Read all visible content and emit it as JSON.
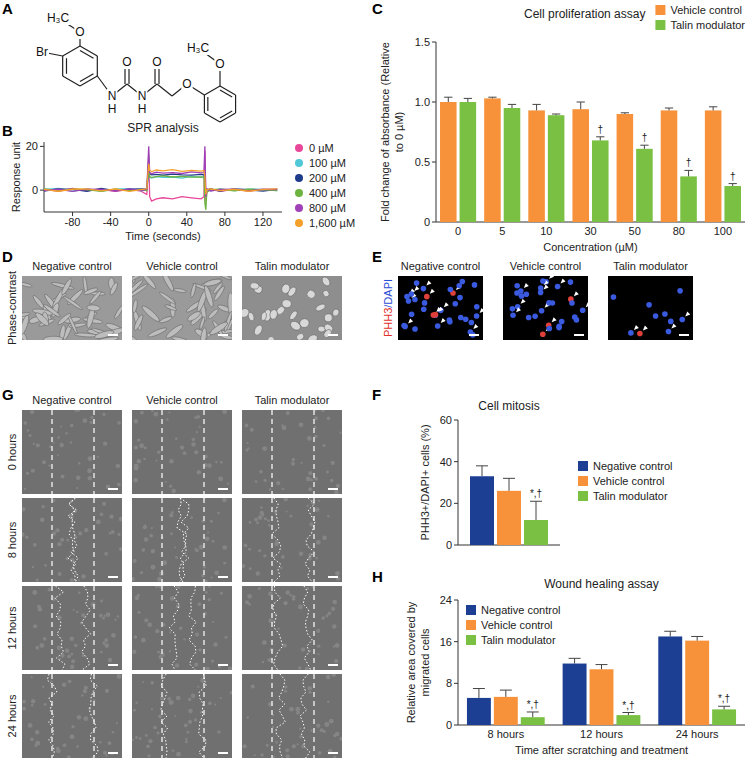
{
  "structure": {
    "panel_label": "A",
    "atoms": [
      "H₃C",
      "O",
      "Br",
      "N",
      "H",
      "O",
      "N",
      "H",
      "O",
      "O",
      "O",
      "H₃C"
    ]
  },
  "chart_data": [
    {
      "panel_label": "B",
      "type": "line",
      "title": "SPR analysis",
      "x_label": "Time (seconds)",
      "y_label": "Response unit",
      "x": [
        -110,
        -95,
        -80,
        -65,
        -50,
        -35,
        -20,
        -8,
        -2,
        0,
        1,
        3,
        8,
        15,
        25,
        35,
        45,
        55,
        58,
        59,
        60,
        61,
        65,
        75,
        90,
        105,
        120,
        135
      ],
      "xlim": [
        -110,
        140
      ],
      "ylim": [
        -10,
        22
      ],
      "xticks": [
        -80,
        -40,
        0,
        40,
        80,
        120
      ],
      "yticks": [
        0,
        20
      ],
      "legend": "right",
      "series": [
        {
          "name": "0 µM",
          "color": "#e8479a",
          "values": [
            0.5,
            -0.5,
            0.8,
            -0.3,
            0.4,
            -0.6,
            0.3,
            -0.5,
            -2,
            14,
            -3,
            -5,
            -4,
            -3.5,
            -4,
            -3,
            -3.5,
            -4,
            -3,
            18,
            -5,
            -1,
            0.5,
            -0.5,
            0.3,
            -0.4,
            0.2,
            0.5
          ]
        },
        {
          "name": "100 µM",
          "color": "#4fc8d8",
          "values": [
            0.3,
            0.8,
            -0.5,
            0.6,
            -0.4,
            0.5,
            0.7,
            -0.3,
            0.2,
            8,
            6,
            5.5,
            6.2,
            5.8,
            6,
            5.5,
            6.3,
            5.8,
            6,
            4,
            -1,
            0.5,
            -0.3,
            0.6,
            -0.2,
            0.5,
            0.3,
            -0.2
          ]
        },
        {
          "name": "200 µM",
          "color": "#1f3c8c",
          "values": [
            -0.4,
            0.6,
            0.3,
            -0.5,
            0.8,
            -0.2,
            0.4,
            0.6,
            0.5,
            10,
            7.5,
            7,
            7.2,
            6.8,
            7.3,
            7,
            6.9,
            7.2,
            7,
            5,
            -2,
            0.2,
            0.5,
            -0.4,
            0.6,
            0.2,
            -0.5,
            0.4
          ]
        },
        {
          "name": "400 µM",
          "color": "#6db33f",
          "values": [
            0.6,
            -0.3,
            0.5,
            0.2,
            -0.6,
            0.4,
            -0.2,
            0.3,
            -0.3,
            16,
            6,
            5.8,
            6.2,
            6.5,
            6,
            6.3,
            5.9,
            6.1,
            6,
            -6,
            -9,
            -1,
            0.2,
            0.4,
            -0.3,
            0.5,
            0.1,
            -0.2
          ]
        },
        {
          "name": "800 µM",
          "color": "#a040b8",
          "values": [
            -0.2,
            0.4,
            -0.6,
            0.5,
            0.3,
            -0.4,
            0.6,
            -0.2,
            0.4,
            20,
            8,
            7.5,
            8.2,
            7.8,
            8,
            7.6,
            8.3,
            7.9,
            8,
            20,
            -3,
            0.6,
            -0.4,
            0.3,
            0.5,
            -0.3,
            0.4,
            0.2
          ]
        },
        {
          "name": "1,600 µM",
          "color": "#f5a02a",
          "values": [
            0.3,
            -0.5,
            0.4,
            0.6,
            -0.3,
            0.5,
            -0.6,
            0.2,
            0.6,
            12,
            9,
            8.5,
            9.2,
            8.8,
            9.4,
            8.6,
            9,
            8.7,
            9,
            6,
            -2,
            0.3,
            0.6,
            -0.2,
            0.4,
            -0.5,
            0.3,
            0.6
          ]
        }
      ]
    },
    {
      "panel_label": "C",
      "type": "bar",
      "title": "Cell proliferation assay",
      "x_label": "Concentration (µM)",
      "y_label": "Fold change of absorbance (Relative to 0 µM)",
      "categories": [
        "0",
        "5",
        "10",
        "30",
        "50",
        "80",
        "100"
      ],
      "ylim": [
        0,
        1.5
      ],
      "yticks": [
        0,
        0.5,
        {
          "value": 1,
          "label": "1.0"
        },
        1.5
      ],
      "legend": "upper right",
      "series": [
        {
          "name": "Vehicle control",
          "color": "#f7923a",
          "values": [
            1.0,
            1.03,
            0.93,
            0.94,
            0.9,
            0.93,
            0.93
          ],
          "errors": [
            0.04,
            0.01,
            0.05,
            0.06,
            0.01,
            0.02,
            0.03
          ]
        },
        {
          "name": "Talin modulator",
          "color": "#7ac143",
          "values": [
            1.0,
            0.95,
            0.89,
            0.68,
            0.61,
            0.38,
            0.3
          ],
          "errors": [
            0.03,
            0.03,
            0.01,
            0.03,
            0.03,
            0.05,
            0.02
          ],
          "annotations": [
            null,
            null,
            null,
            "†",
            "†",
            "†",
            "†"
          ]
        }
      ]
    },
    {
      "panel_label": "F",
      "type": "bar",
      "title": "Cell mitosis",
      "y_label": "PHH3+/DAPI+ cells (%)",
      "categories": [
        null
      ],
      "ylim": [
        0,
        60
      ],
      "yticks": [
        0,
        20,
        40,
        60
      ],
      "legend": "right",
      "series": [
        {
          "name": "Negative control",
          "color": "#1c3f94",
          "values": [
            33
          ],
          "errors": [
            5
          ]
        },
        {
          "name": "Vehicle control",
          "color": "#f7923a",
          "values": [
            26
          ],
          "errors": [
            6
          ]
        },
        {
          "name": "Talin modulator",
          "color": "#7ac143",
          "values": [
            12
          ],
          "errors": [
            9
          ],
          "annotations": [
            "*,†"
          ]
        }
      ]
    },
    {
      "panel_label": "H",
      "type": "bar",
      "title": "Wound healing assay",
      "x_label": "Time after scratching and treatment",
      "y_label": "Relative area covered by migrated cells",
      "categories": [
        "8 hours",
        "12 hours",
        "24 hours"
      ],
      "ylim": [
        0,
        24
      ],
      "yticks": [
        0,
        8,
        16,
        24
      ],
      "legend": "upper left",
      "series": [
        {
          "name": "Negative control",
          "color": "#1c3f94",
          "values": [
            5.2,
            11.8,
            17
          ],
          "errors": [
            1.8,
            1.0,
            1.0
          ]
        },
        {
          "name": "Vehicle control",
          "color": "#f7923a",
          "values": [
            5.4,
            10.7,
            16.2
          ],
          "errors": [
            1.3,
            0.9,
            0.8
          ]
        },
        {
          "name": "Talin modulator",
          "color": "#7ac143",
          "values": [
            1.5,
            1.9,
            3.0
          ],
          "errors": [
            1.0,
            0.5,
            0.6
          ],
          "annotations": [
            "*,†",
            "*,†",
            "*,†"
          ]
        }
      ]
    }
  ],
  "images": [
    {
      "panel_label": "D",
      "row_label": "Phase-contrast",
      "columns": [
        "Negative control",
        "Vehicle control",
        "Talin modulator"
      ]
    },
    {
      "panel_label": "E",
      "row_label_parts": [
        "PHH3",
        "/DAPI"
      ],
      "columns": [
        "Negative control",
        "Vehicle control",
        "Talin modulator"
      ]
    },
    {
      "panel_label": "G",
      "rows": [
        "0 hours",
        "8 hours",
        "12 hours",
        "24 hours"
      ],
      "columns": [
        "Negative control",
        "Vehicle control",
        "Talin modulator"
      ]
    }
  ]
}
